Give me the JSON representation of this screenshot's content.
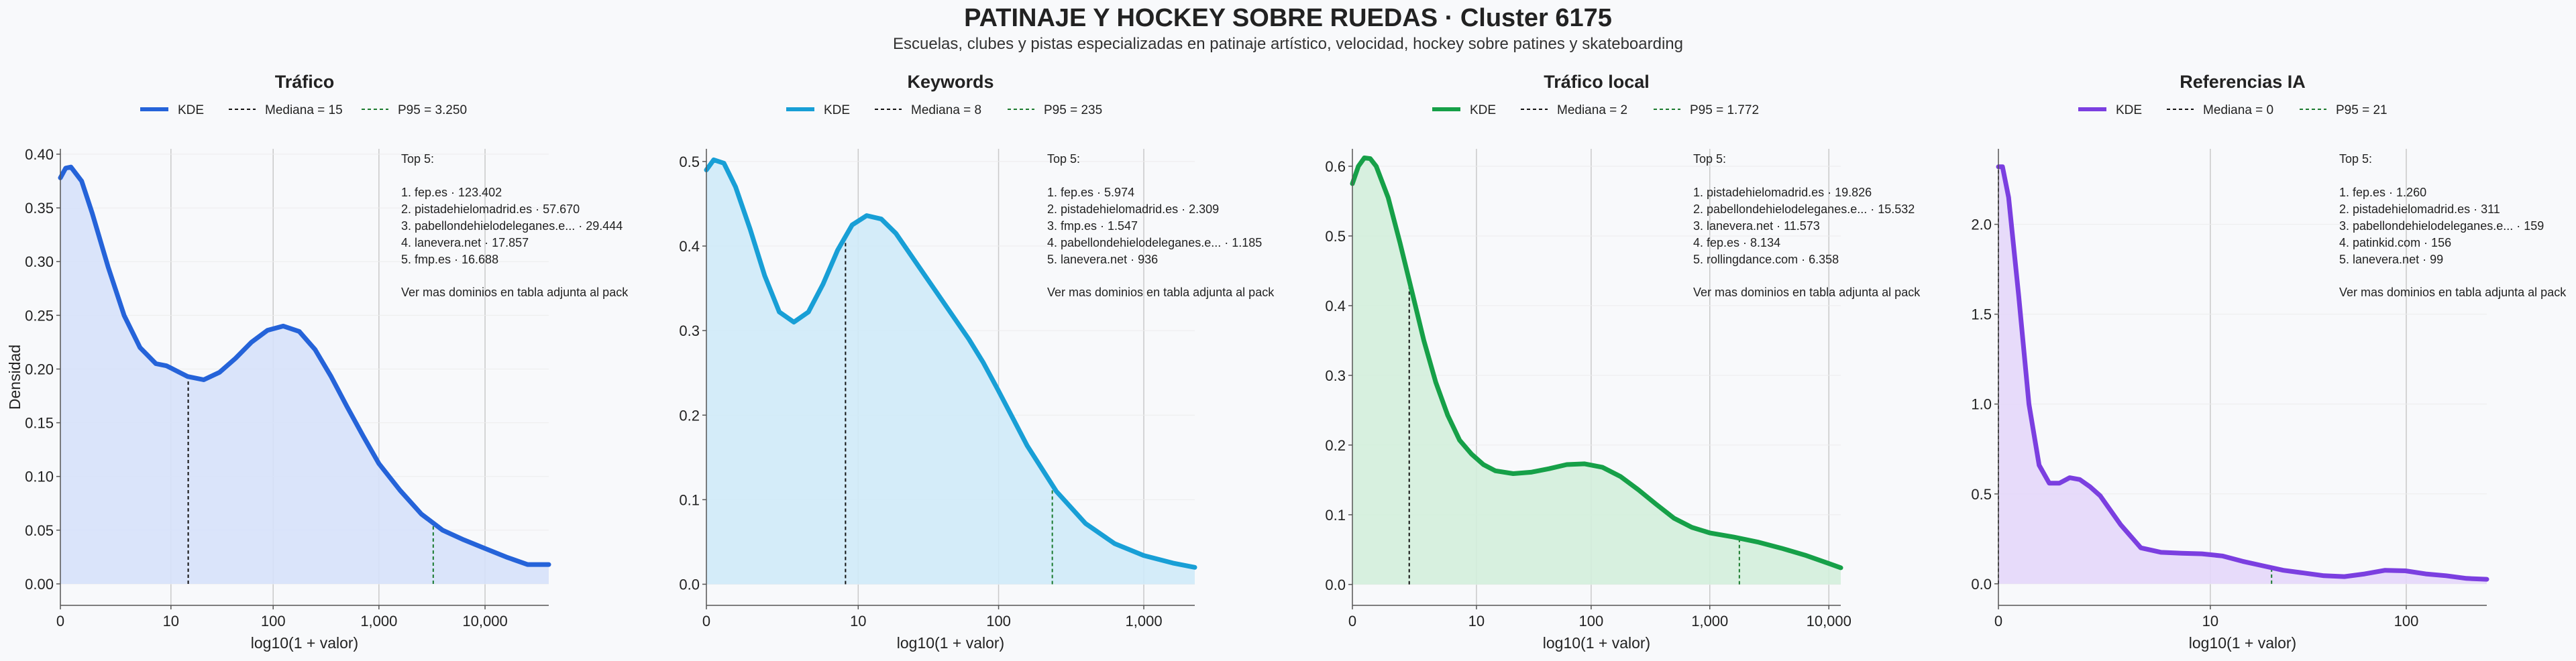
{
  "title": "PATINAJE Y HOCKEY SOBRE RUEDAS · Cluster 6175",
  "subtitle": "Escuelas, clubes y pistas especializadas en patinaje artístico, velocidad, hockey sobre patines y skateboarding",
  "common": {
    "xlabel": "log10(1 + valor)",
    "ylabel": "Densidad",
    "top_header": "Top 5:",
    "top_footer": "Ver mas dominios en tabla adjunta al pack",
    "legend_kde": "KDE"
  },
  "chart_data": [
    {
      "type": "line",
      "title": "Tráfico",
      "color": "#2563d9",
      "fill": "#d6e1fa",
      "legend": [
        "KDE",
        "Mediana = 15",
        "P95 = 3.250"
      ],
      "median": 15,
      "p95": 3250,
      "xlim_log": [
        0,
        4.6
      ],
      "ylim": [
        -0.02,
        0.405
      ],
      "yticks": [
        0.0,
        0.05,
        0.1,
        0.15,
        0.2,
        0.25,
        0.3,
        0.35,
        0.4
      ],
      "ytick_labels": [
        "0.00",
        "0.05",
        "0.10",
        "0.15",
        "0.20",
        "0.25",
        "0.30",
        "0.35",
        "0.40"
      ],
      "xticks": [
        0,
        10,
        100,
        1000,
        10000
      ],
      "xtick_labels": [
        "0",
        "10",
        "100",
        "1,000",
        "10,000"
      ],
      "kde_x_log": [
        0,
        0.05,
        0.1,
        0.2,
        0.3,
        0.45,
        0.6,
        0.75,
        0.9,
        1.0,
        1.1,
        1.2,
        1.35,
        1.5,
        1.65,
        1.8,
        1.95,
        2.1,
        2.25,
        2.4,
        2.55,
        2.7,
        2.85,
        3.0,
        3.2,
        3.4,
        3.6,
        3.8,
        4.0,
        4.2,
        4.4,
        4.6
      ],
      "kde_y": [
        0.378,
        0.387,
        0.388,
        0.375,
        0.345,
        0.295,
        0.25,
        0.22,
        0.205,
        0.203,
        0.198,
        0.193,
        0.19,
        0.197,
        0.21,
        0.225,
        0.236,
        0.24,
        0.235,
        0.218,
        0.193,
        0.165,
        0.138,
        0.112,
        0.087,
        0.065,
        0.05,
        0.041,
        0.033,
        0.025,
        0.018,
        0.018
      ],
      "top5": [
        "1. fep.es · 123.402",
        "2. pistadehielomadrid.es · 57.670",
        "3. pabellondehielodeleganes.e... · 29.444",
        "4. lanevera.net · 17.857",
        "5. fmp.es · 16.688"
      ]
    },
    {
      "type": "line",
      "title": "Keywords",
      "color": "#189fd6",
      "fill": "#cfeaf8",
      "legend": [
        "KDE",
        "Mediana = 8",
        "P95 = 235"
      ],
      "median": 8,
      "p95": 235,
      "xlim_log": [
        0,
        3.35
      ],
      "ylim": [
        -0.025,
        0.515
      ],
      "yticks": [
        0.0,
        0.1,
        0.2,
        0.3,
        0.4,
        0.5
      ],
      "ytick_labels": [
        "0.0",
        "0.1",
        "0.2",
        "0.3",
        "0.4",
        "0.5"
      ],
      "xticks": [
        0,
        10,
        100,
        1000
      ],
      "xtick_labels": [
        "0",
        "10",
        "100",
        "1,000"
      ],
      "kde_x_log": [
        0,
        0.05,
        0.12,
        0.2,
        0.3,
        0.4,
        0.5,
        0.6,
        0.7,
        0.8,
        0.9,
        1.0,
        1.1,
        1.2,
        1.3,
        1.4,
        1.5,
        1.6,
        1.7,
        1.8,
        1.9,
        2.0,
        2.1,
        2.2,
        2.4,
        2.6,
        2.8,
        3.0,
        3.2,
        3.35
      ],
      "kde_y": [
        0.49,
        0.502,
        0.498,
        0.47,
        0.42,
        0.365,
        0.322,
        0.31,
        0.322,
        0.355,
        0.395,
        0.425,
        0.436,
        0.432,
        0.415,
        0.39,
        0.365,
        0.34,
        0.315,
        0.29,
        0.262,
        0.23,
        0.197,
        0.164,
        0.11,
        0.072,
        0.048,
        0.034,
        0.025,
        0.02
      ],
      "top5": [
        "1. fep.es · 5.974",
        "2. pistadehielomadrid.es · 2.309",
        "3. fmp.es · 1.547",
        "4. pabellondehielodeleganes.e... · 1.185",
        "5. lanevera.net · 936"
      ]
    },
    {
      "type": "line",
      "title": "Tráfico local",
      "color": "#16a048",
      "fill": "#d3eedc",
      "legend": [
        "KDE",
        "Mediana = 2",
        "P95 = 1.772"
      ],
      "median": 2,
      "p95": 1772,
      "xlim_log": [
        0,
        4.1
      ],
      "ylim": [
        -0.03,
        0.625
      ],
      "yticks": [
        0.0,
        0.1,
        0.2,
        0.3,
        0.4,
        0.5,
        0.6
      ],
      "ytick_labels": [
        "0.0",
        "0.1",
        "0.2",
        "0.3",
        "0.4",
        "0.5",
        "0.6"
      ],
      "xticks": [
        0,
        10,
        100,
        1000,
        10000
      ],
      "xtick_labels": [
        "0",
        "10",
        "100",
        "1,000",
        "10,000"
      ],
      "kde_x_log": [
        0,
        0.05,
        0.1,
        0.15,
        0.2,
        0.3,
        0.4,
        0.5,
        0.6,
        0.7,
        0.8,
        0.9,
        1.0,
        1.1,
        1.2,
        1.35,
        1.5,
        1.65,
        1.8,
        1.95,
        2.1,
        2.25,
        2.4,
        2.55,
        2.7,
        2.85,
        3.0,
        3.2,
        3.4,
        3.6,
        3.8,
        4.0,
        4.1
      ],
      "kde_y": [
        0.575,
        0.6,
        0.612,
        0.611,
        0.6,
        0.555,
        0.49,
        0.42,
        0.35,
        0.29,
        0.243,
        0.207,
        0.187,
        0.172,
        0.163,
        0.159,
        0.161,
        0.166,
        0.172,
        0.173,
        0.168,
        0.155,
        0.136,
        0.115,
        0.095,
        0.082,
        0.074,
        0.068,
        0.061,
        0.052,
        0.042,
        0.03,
        0.024
      ],
      "top5": [
        "1. pistadehielomadrid.es · 19.826",
        "2. pabellondehielodeleganes.e... · 15.532",
        "3. lanevera.net · 11.573",
        "4. fep.es · 8.134",
        "5. rollingdance.com · 6.358"
      ]
    },
    {
      "type": "line",
      "title": "Referencias IA",
      "color": "#7b3fe0",
      "fill": "#e4d7fa",
      "legend": [
        "KDE",
        "Mediana = 0",
        "P95 = 21"
      ],
      "median": 0,
      "p95": 21,
      "xlim_log": [
        0,
        2.4
      ],
      "ylim": [
        -0.12,
        2.42
      ],
      "yticks": [
        0.0,
        0.5,
        1.0,
        1.5,
        2.0
      ],
      "ytick_labels": [
        "0.0",
        "0.5",
        "1.0",
        "1.5",
        "2.0"
      ],
      "xticks": [
        0,
        10,
        100
      ],
      "xtick_labels": [
        "0",
        "10",
        "100"
      ],
      "kde_x_log": [
        0,
        0.02,
        0.05,
        0.1,
        0.15,
        0.2,
        0.25,
        0.3,
        0.35,
        0.4,
        0.45,
        0.5,
        0.6,
        0.7,
        0.8,
        0.9,
        1.0,
        1.1,
        1.2,
        1.3,
        1.4,
        1.5,
        1.6,
        1.7,
        1.8,
        1.9,
        2.0,
        2.1,
        2.2,
        2.3,
        2.4
      ],
      "kde_y": [
        2.32,
        2.32,
        2.15,
        1.6,
        1.0,
        0.66,
        0.56,
        0.56,
        0.59,
        0.58,
        0.54,
        0.49,
        0.33,
        0.2,
        0.175,
        0.17,
        0.167,
        0.155,
        0.125,
        0.1,
        0.075,
        0.06,
        0.045,
        0.04,
        0.055,
        0.075,
        0.072,
        0.055,
        0.045,
        0.03,
        0.025
      ],
      "top5": [
        "1. fep.es · 1.260",
        "2. pistadehielomadrid.es · 311",
        "3. pabellondehielodeleganes.e... · 159",
        "4. patinkid.com · 156",
        "5. lanevera.net · 99"
      ]
    }
  ]
}
